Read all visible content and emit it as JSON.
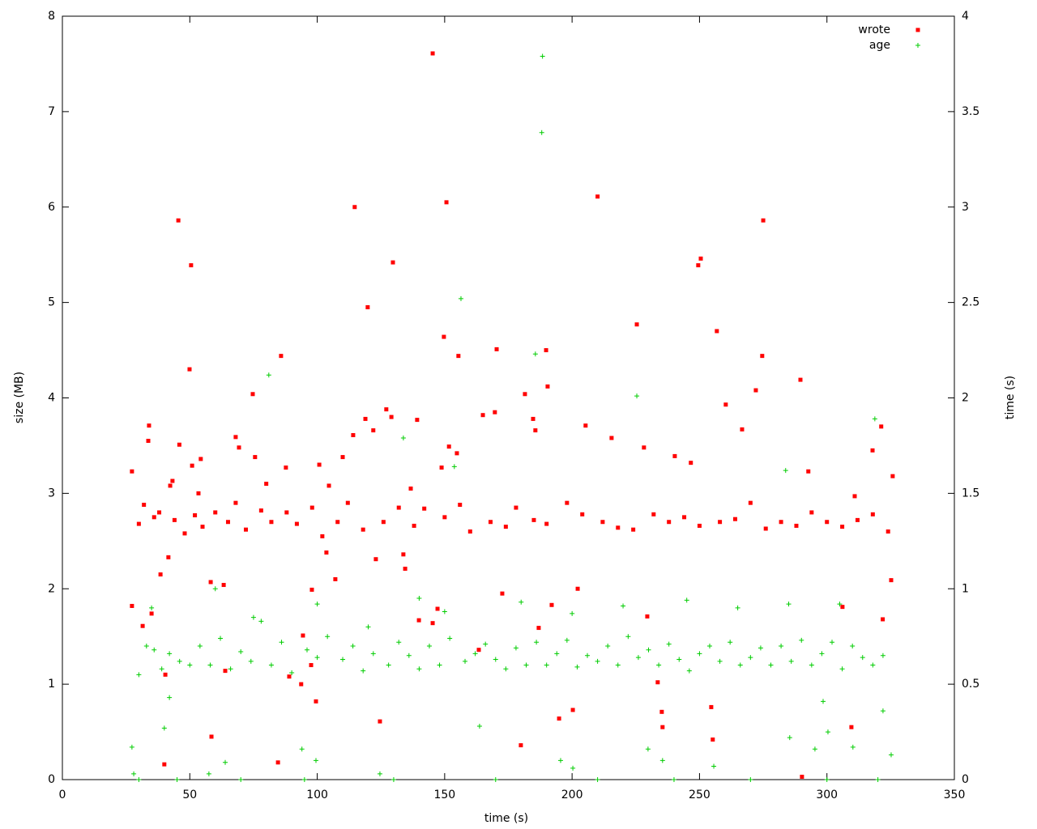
{
  "chart_data": {
    "type": "scatter",
    "xlabel": "time (s)",
    "ylabel": "size (MB)",
    "y2label": "time (s)",
    "xlim": [
      0,
      350
    ],
    "xticks": [
      0,
      50,
      100,
      150,
      200,
      250,
      300,
      350
    ],
    "ylim": [
      0,
      8
    ],
    "yticks": [
      0,
      1,
      2,
      3,
      4,
      5,
      6,
      7,
      8
    ],
    "y2lim": [
      0,
      4
    ],
    "y2ticks": [
      0,
      0.5,
      1,
      1.5,
      2,
      2.5,
      3,
      3.5,
      4
    ],
    "grid": false,
    "legend": "top-right",
    "series": [
      {
        "name": "wrote",
        "color": "#ff0000",
        "marker": "square",
        "x": [
          27.3,
          27.3,
          45.5,
          50.5,
          49.9,
          45.9,
          34,
          33.7,
          31.5,
          35,
          38.5,
          40,
          40.4,
          41.6,
          42.3,
          43.2,
          50.9,
          54.3,
          53.4,
          58.5,
          58.2,
          63.3,
          63.9,
          68,
          69.3,
          74.7,
          75.6,
          80,
          84.6,
          85.8,
          87.7,
          89,
          94.4,
          93.7,
          97.6,
          97.9,
          99.5,
          100.8,
          103.6,
          104.6,
          107.1,
          110,
          114.1,
          114.7,
          118.9,
          119.8,
          122,
          123,
          124.6,
          127.1,
          129.7,
          129.1,
          133.8,
          134.5,
          136.7,
          139.2,
          139.9,
          145.3,
          145.3,
          148.8,
          147.2,
          149.7,
          150.7,
          151.7,
          155.4,
          154.8,
          163.4,
          165,
          169.7,
          170.4,
          172.6,
          179.9,
          181.5,
          184.7,
          185.6,
          186.9,
          189.8,
          190.4,
          192,
          194.9,
          200.3,
          202.2,
          205.3,
          210,
          215.5,
          225.4,
          228.2,
          229.5,
          233.6,
          235.2,
          235.5,
          240.3,
          246.6,
          249.5,
          250.5,
          254.6,
          255.2,
          256.8,
          260.3,
          266.7,
          272.1,
          274.6,
          275,
          290.2,
          289.6,
          292.7,
          309.6,
          306.1,
          321.3,
          321.9,
          325.2,
          325.8,
          317.9,
          310.9,
          30,
          32,
          36,
          38,
          44,
          48,
          52,
          55,
          60,
          65,
          68,
          72,
          78,
          82,
          88,
          92,
          98,
          102,
          108,
          112,
          118,
          126,
          132,
          138,
          142,
          150,
          156,
          160,
          168,
          174,
          178,
          185,
          190,
          198,
          204,
          212,
          218,
          224,
          232,
          238,
          244,
          250,
          258,
          264,
          270,
          276,
          282,
          288,
          294,
          300,
          306,
          312,
          318,
          324
        ],
        "values": [
          3.23,
          1.82,
          5.86,
          5.39,
          4.3,
          3.51,
          3.71,
          3.55,
          1.61,
          1.74,
          2.15,
          0.16,
          1.1,
          2.33,
          3.08,
          3.13,
          3.29,
          3.36,
          3.0,
          0.45,
          2.07,
          2.04,
          1.14,
          3.59,
          3.48,
          4.04,
          3.38,
          3.1,
          0.18,
          4.44,
          3.27,
          1.08,
          1.51,
          1.0,
          1.2,
          1.99,
          0.82,
          3.3,
          2.38,
          3.08,
          2.1,
          3.38,
          3.61,
          6.0,
          3.78,
          4.95,
          3.66,
          2.31,
          0.61,
          3.88,
          5.42,
          3.8,
          2.36,
          2.21,
          3.05,
          3.77,
          1.67,
          1.64,
          7.61,
          3.27,
          1.79,
          4.64,
          6.05,
          3.49,
          4.44,
          3.42,
          1.36,
          3.82,
          3.85,
          4.51,
          1.95,
          0.36,
          4.04,
          3.78,
          3.66,
          1.59,
          4.5,
          4.12,
          1.83,
          0.64,
          0.73,
          2.0,
          3.71,
          6.11,
          3.58,
          4.77,
          3.48,
          1.71,
          1.02,
          0.71,
          0.55,
          3.39,
          3.32,
          5.39,
          5.46,
          0.76,
          0.42,
          4.7,
          3.93,
          3.67,
          4.08,
          4.44,
          5.86,
          0.03,
          4.19,
          3.23,
          0.55,
          1.81,
          3.7,
          1.68,
          2.09,
          3.18,
          3.45,
          2.97,
          2.68,
          2.88,
          2.75,
          2.8,
          2.72,
          2.58,
          2.77,
          2.65,
          2.8,
          2.7,
          2.9,
          2.62,
          2.82,
          2.7,
          2.8,
          2.68,
          2.85,
          2.55,
          2.7,
          2.9,
          2.62,
          2.7,
          2.85,
          2.66,
          2.84,
          2.75,
          2.88,
          2.6,
          2.7,
          2.65,
          2.85,
          2.72,
          2.68,
          2.9,
          2.78,
          2.7,
          2.64,
          2.62,
          2.78,
          2.7,
          2.75,
          2.66,
          2.7,
          2.73,
          2.9,
          2.63,
          2.7,
          2.66,
          2.8,
          2.7,
          2.65,
          2.72,
          2.78,
          2.6
        ]
      },
      {
        "name": "age",
        "color": "#00cc00",
        "marker": "plus",
        "axis": "y2",
        "x": [
          188.4,
          188.1,
          156.4,
          185.6,
          225.4,
          81,
          318.8,
          133.8,
          283.8,
          153.8,
          27.3,
          28,
          40,
          42,
          57.5,
          63.9,
          163.7,
          195.5,
          200.3,
          229.8,
          235.5,
          255.6,
          285.4,
          295.3,
          298.5,
          300.4,
          310.2,
          322,
          325.2,
          99.5,
          94,
          124.6,
          30,
          33,
          36,
          39,
          42,
          46,
          50,
          54,
          58,
          62,
          66,
          70,
          74,
          78,
          82,
          86,
          90,
          96,
          100,
          104,
          110,
          114,
          118,
          122,
          128,
          132,
          136,
          140,
          144,
          148,
          152,
          158,
          162,
          166,
          170,
          174,
          178,
          182,
          186,
          190,
          194,
          198,
          202,
          206,
          210,
          214,
          218,
          222,
          226,
          230,
          234,
          238,
          242,
          246,
          250,
          254,
          258,
          262,
          266,
          270,
          274,
          278,
          282,
          286,
          290,
          294,
          298,
          302,
          306,
          310,
          314,
          318,
          322,
          30,
          45,
          70,
          95,
          130,
          170,
          210,
          240,
          270,
          300,
          320,
          35,
          60,
          75,
          100,
          120,
          140,
          150,
          180,
          200,
          220,
          245,
          265,
          285,
          305
        ],
        "values": [
          3.79,
          3.39,
          2.52,
          2.23,
          2.01,
          2.12,
          1.89,
          1.79,
          1.62,
          1.64,
          0.17,
          0.03,
          0.27,
          0.43,
          0.03,
          0.09,
          0.28,
          0.1,
          0.06,
          0.16,
          0.1,
          0.07,
          0.22,
          0.16,
          0.41,
          0.25,
          0.17,
          0.36,
          0.13,
          0.1,
          0.16,
          0.03,
          0.55,
          0.7,
          0.68,
          0.58,
          0.66,
          0.62,
          0.6,
          0.7,
          0.6,
          0.74,
          0.58,
          0.67,
          0.62,
          0.83,
          0.6,
          0.72,
          0.56,
          0.68,
          0.64,
          0.75,
          0.63,
          0.7,
          0.57,
          0.66,
          0.6,
          0.72,
          0.65,
          0.58,
          0.7,
          0.6,
          0.74,
          0.62,
          0.66,
          0.71,
          0.63,
          0.58,
          0.69,
          0.6,
          0.72,
          0.6,
          0.66,
          0.73,
          0.59,
          0.65,
          0.62,
          0.7,
          0.6,
          0.75,
          0.64,
          0.68,
          0.6,
          0.71,
          0.63,
          0.57,
          0.66,
          0.7,
          0.62,
          0.72,
          0.6,
          0.64,
          0.69,
          0.6,
          0.7,
          0.62,
          0.73,
          0.6,
          0.66,
          0.72,
          0.58,
          0.7,
          0.64,
          0.6,
          0.65,
          0,
          0,
          0,
          0,
          0,
          0,
          0,
          0,
          0,
          0,
          0,
          0.9,
          1.0,
          0.85,
          0.92,
          0.8,
          0.95,
          0.88,
          0.93,
          0.87,
          0.91,
          0.94,
          0.9,
          0.92,
          0.92
        ]
      }
    ]
  }
}
